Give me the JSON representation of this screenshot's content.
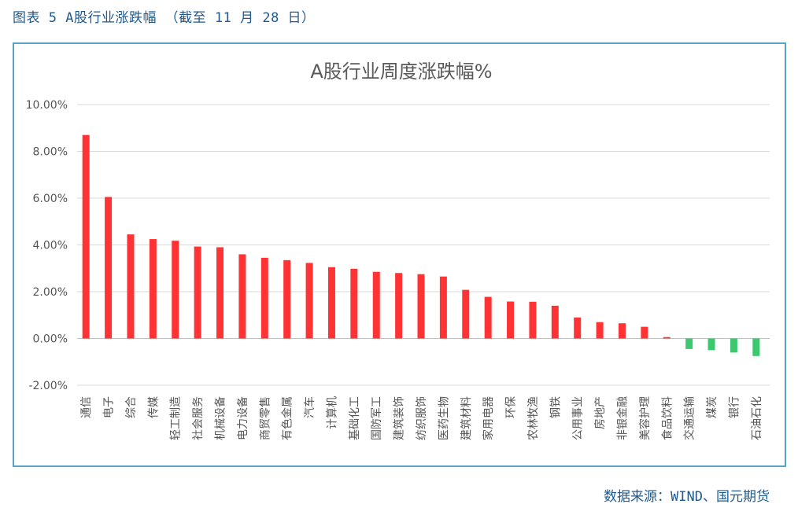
{
  "figure": {
    "caption": "图表 5 A股行业涨跌幅 （截至 11 月 28 日）",
    "source": "数据来源：WIND、国元期货"
  },
  "colors": {
    "positive": "#ff3333",
    "negative": "#3cc86e",
    "grid": "#d9d9d9",
    "frame": "#5aa3c8",
    "caption": "#1f5a8f"
  },
  "chart_data": {
    "type": "bar",
    "title": "A股行业周度涨跌幅%",
    "xlabel": "",
    "ylabel": "",
    "ylim": [
      -0.02,
      0.1
    ],
    "yticks": [
      -0.02,
      0.0,
      0.02,
      0.04,
      0.06,
      0.08,
      0.1
    ],
    "ytick_labels": [
      "-2.00%",
      "0.00%",
      "2.00%",
      "4.00%",
      "6.00%",
      "8.00%",
      "10.00%"
    ],
    "grid": true,
    "legend": "none",
    "categories": [
      "通信",
      "电子",
      "综合",
      "传媒",
      "轻工制造",
      "社会服务",
      "机械设备",
      "电力设备",
      "商贸零售",
      "有色金属",
      "汽车",
      "计算机",
      "基础化工",
      "国防军工",
      "建筑装饰",
      "纺织服饰",
      "医药生物",
      "建筑材料",
      "家用电器",
      "环保",
      "农林牧渔",
      "钢铁",
      "公用事业",
      "房地产",
      "非银金融",
      "美容护理",
      "食品饮料",
      "交通运输",
      "煤炭",
      "银行",
      "石油石化"
    ],
    "values": [
      0.087,
      0.0605,
      0.0445,
      0.0425,
      0.0418,
      0.0393,
      0.039,
      0.036,
      0.0345,
      0.0335,
      0.0323,
      0.0305,
      0.0298,
      0.0285,
      0.028,
      0.0275,
      0.0265,
      0.0208,
      0.0178,
      0.0158,
      0.0157,
      0.014,
      0.009,
      0.007,
      0.0065,
      0.005,
      0.0006,
      -0.0045,
      -0.005,
      -0.006,
      -0.0075
    ]
  }
}
